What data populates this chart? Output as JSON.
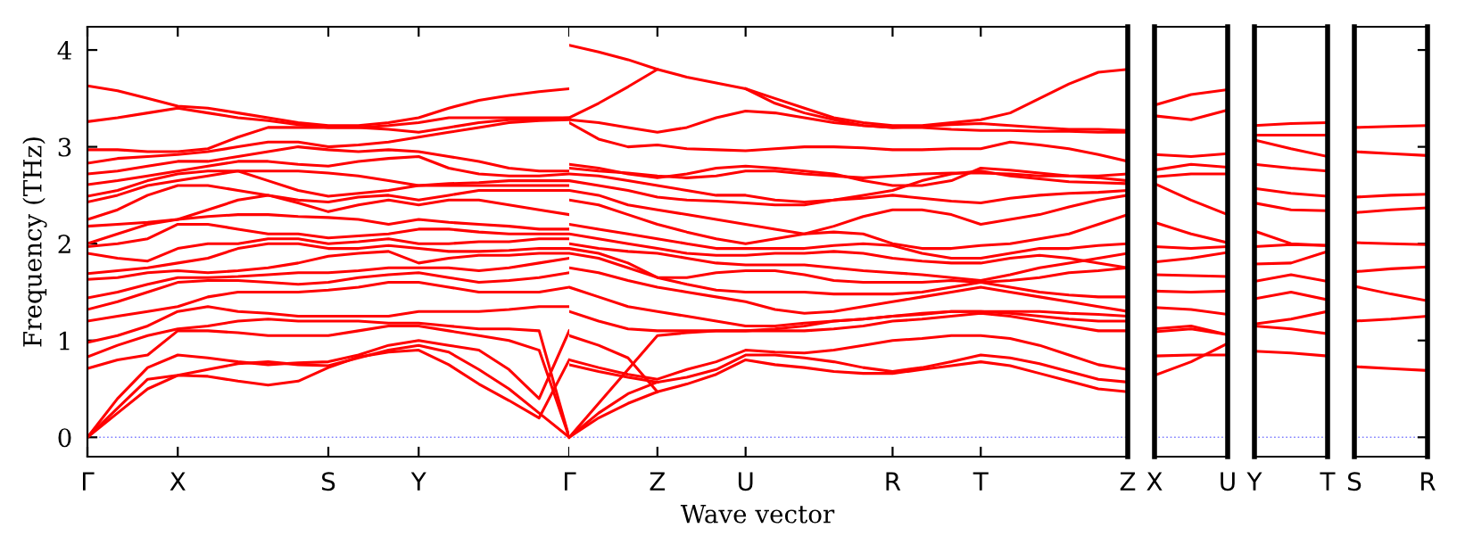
{
  "chart_data": [
    {
      "type": "line",
      "xlabel": "Wave vector",
      "ylabel": "Frequency (THz)",
      "ylim": [
        -0.2,
        4.24
      ],
      "yticks": [
        0,
        1,
        2,
        3,
        4
      ],
      "categories": [
        "Γ",
        null,
        null,
        "X",
        null,
        null,
        null,
        null,
        "S",
        null,
        null,
        "Y",
        null,
        null,
        null,
        null,
        "Γ"
      ],
      "ref_lines": [
        {
          "axis": "y",
          "value": 0,
          "color": "#8080ff",
          "line_style": "dotted"
        }
      ],
      "line_style": "solid",
      "marker": "none",
      "grid": false,
      "legend": false,
      "series": [
        {
          "color": "#ff0000",
          "values": [
            0,
            0.25,
            0.5,
            0.64,
            0.63,
            0.58,
            0.54,
            0.58,
            0.72,
            0.83,
            0.88,
            0.9,
            0.75,
            0.55,
            0.38,
            0.2,
            0.8
          ]
        },
        {
          "color": "#ff0000",
          "values": [
            0,
            0.3,
            0.6,
            0.64,
            0.7,
            0.76,
            0.78,
            0.75,
            0.74,
            0.82,
            0.9,
            0.95,
            0.88,
            0.7,
            0.5,
            0.25,
            0
          ]
        },
        {
          "color": "#ff0000",
          "values": [
            0,
            0.4,
            0.72,
            0.85,
            0.82,
            0.78,
            0.75,
            0.77,
            0.78,
            0.85,
            0.95,
            1.0,
            0.95,
            0.9,
            0.7,
            0.4,
            1.1
          ]
        },
        {
          "color": "#ff0000",
          "values": [
            0.71,
            0.8,
            0.85,
            1.1,
            1.1,
            1.08,
            1.05,
            1.05,
            1.05,
            1.1,
            1.15,
            1.15,
            1.1,
            1.05,
            1.0,
            0.9,
            0
          ]
        },
        {
          "color": "#ff0000",
          "values": [
            0.83,
            0.95,
            1.05,
            1.12,
            1.15,
            1.2,
            1.22,
            1.2,
            1.2,
            1.2,
            1.18,
            1.18,
            1.15,
            1.12,
            1.12,
            1.1,
            0
          ]
        },
        {
          "color": "#ff0000",
          "values": [
            0.98,
            1.05,
            1.15,
            1.3,
            1.35,
            1.3,
            1.28,
            1.25,
            1.25,
            1.25,
            1.25,
            1.3,
            1.3,
            1.3,
            1.32,
            1.35,
            1.35
          ]
        },
        {
          "color": "#ff0000",
          "values": [
            1.2,
            1.25,
            1.3,
            1.35,
            1.45,
            1.5,
            1.5,
            1.5,
            1.52,
            1.55,
            1.6,
            1.6,
            1.55,
            1.5,
            1.5,
            1.5,
            1.55
          ]
        },
        {
          "color": "#ff0000",
          "values": [
            1.32,
            1.4,
            1.5,
            1.6,
            1.62,
            1.62,
            1.6,
            1.58,
            1.6,
            1.65,
            1.68,
            1.7,
            1.65,
            1.6,
            1.62,
            1.65,
            1.7
          ]
        },
        {
          "color": "#ff0000",
          "values": [
            1.44,
            1.5,
            1.58,
            1.65,
            1.65,
            1.66,
            1.68,
            1.7,
            1.7,
            1.72,
            1.75,
            1.75,
            1.75,
            1.72,
            1.75,
            1.8,
            1.85
          ]
        },
        {
          "color": "#ff0000",
          "values": [
            1.63,
            1.65,
            1.7,
            1.72,
            1.7,
            1.72,
            1.75,
            1.8,
            1.87,
            1.9,
            1.92,
            1.8,
            1.85,
            1.88,
            1.88,
            1.9,
            1.9
          ]
        },
        {
          "color": "#ff0000",
          "values": [
            1.69,
            1.72,
            1.75,
            1.8,
            1.85,
            1.95,
            2.0,
            2.0,
            1.95,
            1.95,
            1.98,
            1.95,
            1.92,
            1.92,
            1.93,
            1.95,
            1.95
          ]
        },
        {
          "color": "#ff0000",
          "values": [
            1.9,
            1.85,
            1.82,
            1.95,
            2.0,
            2.0,
            2.05,
            2.05,
            2.0,
            2.02,
            2.05,
            2.0,
            2.0,
            2.02,
            2.02,
            2.05,
            2.05
          ]
        },
        {
          "color": "#ff0000",
          "values": [
            1.97,
            2.0,
            2.05,
            2.2,
            2.2,
            2.15,
            2.1,
            2.1,
            2.06,
            2.08,
            2.1,
            2.15,
            2.15,
            2.12,
            2.1,
            2.1,
            2.1
          ]
        },
        {
          "color": "#ff0000",
          "values": [
            2.0,
            2.1,
            2.2,
            2.25,
            2.28,
            2.3,
            2.3,
            2.28,
            2.27,
            2.25,
            2.2,
            2.25,
            2.22,
            2.2,
            2.18,
            2.15,
            2.15
          ]
        },
        {
          "color": "#ff0000",
          "values": [
            2.18,
            2.2,
            2.22,
            2.25,
            2.35,
            2.45,
            2.5,
            2.42,
            2.33,
            2.4,
            2.45,
            2.4,
            2.45,
            2.45,
            2.4,
            2.35,
            2.3
          ]
        },
        {
          "color": "#ff0000",
          "values": [
            2.25,
            2.35,
            2.5,
            2.6,
            2.6,
            2.55,
            2.5,
            2.45,
            2.43,
            2.48,
            2.5,
            2.45,
            2.5,
            2.55,
            2.55,
            2.55,
            2.55
          ]
        },
        {
          "color": "#ff0000",
          "values": [
            2.43,
            2.5,
            2.6,
            2.65,
            2.7,
            2.75,
            2.65,
            2.55,
            2.49,
            2.52,
            2.55,
            2.6,
            2.6,
            2.6,
            2.6,
            2.6,
            2.6
          ]
        },
        {
          "color": "#ff0000",
          "values": [
            2.49,
            2.55,
            2.65,
            2.72,
            2.75,
            2.75,
            2.75,
            2.75,
            2.73,
            2.7,
            2.65,
            2.6,
            2.62,
            2.63,
            2.65,
            2.65,
            2.65
          ]
        },
        {
          "color": "#ff0000",
          "values": [
            2.61,
            2.65,
            2.7,
            2.75,
            2.8,
            2.85,
            2.85,
            2.82,
            2.8,
            2.85,
            2.88,
            2.9,
            2.78,
            2.72,
            2.7,
            2.7,
            2.72
          ]
        },
        {
          "color": "#ff0000",
          "values": [
            2.72,
            2.75,
            2.8,
            2.85,
            2.85,
            2.9,
            2.95,
            3.0,
            2.97,
            2.95,
            2.97,
            2.95,
            2.9,
            2.85,
            2.78,
            2.75,
            2.75
          ]
        },
        {
          "color": "#ff0000",
          "values": [
            2.83,
            2.88,
            2.9,
            2.92,
            2.95,
            3.0,
            3.05,
            3.05,
            3.0,
            3.02,
            3.05,
            3.1,
            3.15,
            3.2,
            3.25,
            3.27,
            3.28
          ]
        },
        {
          "color": "#ff0000",
          "values": [
            2.97,
            2.97,
            2.95,
            2.95,
            2.98,
            3.1,
            3.2,
            3.2,
            3.2,
            3.2,
            3.18,
            3.15,
            3.2,
            3.25,
            3.28,
            3.28,
            3.3
          ]
        },
        {
          "color": "#ff0000",
          "values": [
            3.26,
            3.3,
            3.35,
            3.4,
            3.35,
            3.3,
            3.27,
            3.23,
            3.2,
            3.2,
            3.22,
            3.25,
            3.3,
            3.3,
            3.3,
            3.3,
            3.3
          ]
        },
        {
          "color": "#ff0000",
          "values": [
            3.63,
            3.58,
            3.5,
            3.42,
            3.4,
            3.35,
            3.3,
            3.25,
            3.22,
            3.22,
            3.25,
            3.3,
            3.4,
            3.48,
            3.53,
            3.57,
            3.6
          ]
        }
      ]
    },
    {
      "type": "line",
      "ylim": [
        -0.2,
        4.24
      ],
      "yticks": [
        0,
        1,
        2,
        3,
        4
      ],
      "tick_labels": "x",
      "categories": [
        null,
        null,
        null,
        "Z",
        null,
        null,
        "U",
        null,
        null,
        null,
        null,
        "R",
        null,
        null,
        "T",
        null,
        null,
        null,
        null,
        "Z"
      ],
      "ref_lines": [
        {
          "axis": "y",
          "value": 0,
          "color": "#8080ff",
          "line_style": "dotted"
        }
      ],
      "line_style": "solid",
      "marker": "none",
      "grid": false,
      "legend": false,
      "series": [
        {
          "color": "#ff0000",
          "values": [
            0,
            0.2,
            0.35,
            0.47,
            0.55,
            0.65,
            0.8,
            0.75,
            0.72,
            0.68,
            0.66,
            0.66,
            0.7,
            0.74,
            0.78,
            0.74,
            0.66,
            0.58,
            0.5,
            0.47
          ]
        },
        {
          "color": "#ff0000",
          "values": [
            0,
            0.25,
            0.45,
            0.57,
            0.62,
            0.7,
            0.85,
            0.85,
            0.82,
            0.78,
            0.72,
            0.68,
            0.72,
            0.78,
            0.85,
            0.82,
            0.76,
            0.68,
            0.6,
            0.57
          ]
        },
        {
          "color": "#ff0000",
          "values": [
            0,
            0.35,
            0.7,
            1.05,
            1.08,
            1.1,
            1.1,
            1.1,
            1.1,
            1.12,
            1.15,
            1.2,
            1.22,
            1.25,
            1.28,
            1.25,
            1.2,
            1.15,
            1.1,
            1.1
          ]
        },
        {
          "color": "#ff0000",
          "values": [
            0.75,
            0.68,
            0.62,
            0.57,
            null,
            null,
            null,
            null,
            null,
            null,
            null,
            null,
            null,
            null,
            null,
            null,
            null,
            null,
            null,
            null
          ]
        },
        {
          "color": "#ff0000",
          "values": [
            0.8,
            0.72,
            0.65,
            0.6,
            0.7,
            0.78,
            0.9,
            0.88,
            0.87,
            0.9,
            0.95,
            1.0,
            1.02,
            1.05,
            1.05,
            1.02,
            0.95,
            0.85,
            0.75,
            0.7
          ]
        },
        {
          "color": "#ff0000",
          "values": [
            1.05,
            0.95,
            0.82,
            0.47,
            null,
            null,
            null,
            null,
            null,
            null,
            null,
            null,
            null,
            null,
            null,
            null,
            null,
            null,
            null,
            null
          ]
        },
        {
          "color": "#ff0000",
          "values": [
            1.3,
            1.2,
            1.12,
            1.1,
            1.1,
            1.1,
            1.1,
            1.12,
            1.15,
            1.2,
            1.22,
            1.25,
            1.27,
            1.3,
            1.3,
            1.28,
            1.25,
            1.22,
            1.2,
            1.2
          ]
        },
        {
          "color": "#ff0000",
          "values": [
            1.55,
            1.45,
            1.35,
            1.3,
            1.25,
            1.2,
            1.15,
            1.15,
            1.18,
            1.2,
            1.22,
            1.25,
            1.28,
            1.3,
            1.3,
            1.3,
            1.3,
            1.28,
            1.27,
            1.25
          ]
        },
        {
          "color": "#ff0000",
          "values": [
            1.75,
            1.7,
            1.62,
            1.55,
            1.5,
            1.45,
            1.4,
            1.32,
            1.28,
            1.3,
            1.35,
            1.4,
            1.45,
            1.5,
            1.55,
            1.5,
            1.45,
            1.4,
            1.35,
            1.3
          ]
        },
        {
          "color": "#ff0000",
          "values": [
            1.9,
            1.85,
            1.75,
            1.65,
            1.58,
            1.52,
            1.5,
            1.5,
            1.5,
            1.48,
            1.48,
            1.48,
            1.5,
            1.55,
            1.6,
            1.55,
            1.5,
            1.47,
            1.45,
            1.45
          ]
        },
        {
          "color": "#ff0000",
          "values": [
            1.95,
            1.9,
            1.8,
            1.65,
            1.65,
            1.7,
            1.72,
            1.72,
            1.68,
            1.62,
            1.6,
            1.6,
            1.6,
            1.62,
            1.6,
            1.62,
            1.65,
            1.7,
            1.72,
            1.75
          ]
        },
        {
          "color": "#ff0000",
          "values": [
            2.0,
            1.95,
            1.92,
            1.9,
            1.85,
            1.8,
            1.78,
            1.78,
            1.78,
            1.75,
            1.72,
            1.7,
            1.68,
            1.65,
            1.62,
            1.68,
            1.75,
            1.8,
            1.85,
            1.9
          ]
        },
        {
          "color": "#ff0000",
          "values": [
            2.1,
            2.05,
            2.0,
            1.95,
            1.9,
            1.88,
            1.88,
            1.9,
            1.9,
            1.92,
            1.9,
            1.85,
            1.82,
            1.8,
            1.8,
            1.85,
            1.88,
            1.85,
            1.8,
            1.75
          ]
        },
        {
          "color": "#ff0000",
          "values": [
            2.2,
            2.15,
            2.1,
            2.05,
            2.0,
            1.95,
            1.95,
            1.95,
            1.95,
            1.98,
            2.0,
            1.98,
            1.9,
            1.85,
            1.85,
            1.9,
            1.95,
            1.95,
            1.98,
            2.0
          ]
        },
        {
          "color": "#ff0000",
          "values": [
            2.45,
            2.4,
            2.3,
            2.2,
            2.12,
            2.05,
            2.0,
            2.05,
            2.1,
            2.12,
            2.1,
            2.0,
            1.95,
            1.95,
            1.98,
            2.0,
            2.05,
            2.1,
            2.2,
            2.3
          ]
        },
        {
          "color": "#ff0000",
          "values": [
            2.55,
            2.5,
            2.4,
            2.35,
            2.3,
            2.25,
            2.2,
            2.15,
            2.1,
            2.18,
            2.28,
            2.35,
            2.35,
            2.3,
            2.2,
            2.25,
            2.3,
            2.38,
            2.45,
            2.5
          ]
        },
        {
          "color": "#ff0000",
          "values": [
            2.65,
            2.6,
            2.55,
            2.48,
            2.45,
            2.44,
            2.42,
            2.4,
            2.4,
            2.45,
            2.47,
            2.5,
            2.47,
            2.44,
            2.42,
            2.47,
            2.5,
            2.52,
            2.53,
            2.55
          ]
        },
        {
          "color": "#ff0000",
          "values": [
            2.72,
            2.7,
            2.65,
            2.6,
            2.55,
            2.5,
            2.5,
            2.45,
            2.43,
            2.45,
            2.5,
            2.55,
            2.65,
            2.72,
            2.75,
            2.7,
            2.67,
            2.64,
            2.63,
            2.62
          ]
        },
        {
          "color": "#ff0000",
          "values": [
            2.78,
            2.75,
            2.73,
            2.7,
            2.68,
            2.7,
            2.75,
            2.75,
            2.72,
            2.7,
            2.68,
            2.7,
            2.72,
            2.73,
            2.73,
            2.72,
            2.7,
            2.7,
            2.7,
            2.72
          ]
        },
        {
          "color": "#ff0000",
          "values": [
            2.82,
            2.78,
            2.72,
            2.68,
            2.72,
            2.78,
            2.8,
            2.78,
            2.75,
            2.72,
            2.65,
            2.6,
            2.6,
            2.65,
            2.78,
            2.76,
            2.73,
            2.7,
            2.68,
            2.65
          ]
        },
        {
          "color": "#ff0000",
          "values": [
            3.25,
            3.08,
            3.0,
            3.02,
            2.98,
            2.97,
            2.96,
            2.98,
            3.0,
            3.0,
            2.99,
            2.97,
            2.97,
            2.98,
            2.98,
            3.05,
            3.02,
            2.98,
            2.92,
            2.85
          ]
        },
        {
          "color": "#ff0000",
          "values": [
            3.28,
            3.25,
            3.2,
            3.15,
            3.2,
            3.3,
            3.37,
            3.35,
            3.3,
            3.25,
            3.22,
            3.2,
            3.21,
            3.23,
            3.24,
            3.22,
            3.2,
            3.18,
            3.18,
            3.17
          ]
        },
        {
          "color": "#ff0000",
          "values": [
            3.3,
            3.45,
            3.62,
            3.8,
            null,
            null,
            3.6,
            3.45,
            3.35,
            3.28,
            3.22,
            3.2,
            3.2,
            3.18,
            3.17,
            3.17,
            3.16,
            3.16,
            3.15,
            3.15
          ]
        },
        {
          "color": "#ff0000",
          "values": [
            4.05,
            3.98,
            3.9,
            3.8,
            3.72,
            3.66,
            3.6,
            3.5,
            3.4,
            3.3,
            3.25,
            3.22,
            3.22,
            3.25,
            3.28,
            3.35,
            3.5,
            3.65,
            3.77,
            3.8
          ]
        }
      ]
    },
    {
      "type": "line",
      "ylim": [
        -0.2,
        4.24
      ],
      "yticks": [
        0,
        1,
        2,
        3,
        4
      ],
      "tick_labels": "x",
      "categories": [
        "X",
        null,
        "U"
      ],
      "ref_lines": [
        {
          "axis": "y",
          "value": 0,
          "color": "#8080ff",
          "line_style": "dotted"
        }
      ],
      "line_style": "solid",
      "marker": "none",
      "grid": false,
      "legend": false,
      "series": [
        {
          "color": "#ff0000",
          "values": [
            0.64,
            0.78,
            0.97
          ]
        },
        {
          "color": "#ff0000",
          "values": [
            0.84,
            0.85,
            0.85
          ]
        },
        {
          "color": "#ff0000",
          "values": [
            1.09,
            1.12,
            1.06
          ]
        },
        {
          "color": "#ff0000",
          "values": [
            1.12,
            1.15,
            1.06
          ]
        },
        {
          "color": "#ff0000",
          "values": [
            1.34,
            1.32,
            1.27
          ]
        },
        {
          "color": "#ff0000",
          "values": [
            1.51,
            1.5,
            1.51
          ]
        },
        {
          "color": "#ff0000",
          "values": [
            1.68,
            1.67,
            1.66
          ]
        },
        {
          "color": "#ff0000",
          "values": [
            1.81,
            1.85,
            1.91
          ]
        },
        {
          "color": "#ff0000",
          "values": [
            1.97,
            1.95,
            1.97
          ]
        },
        {
          "color": "#ff0000",
          "values": [
            2.22,
            2.1,
            2.01
          ]
        },
        {
          "color": "#ff0000",
          "values": [
            2.62,
            2.45,
            2.3
          ]
        },
        {
          "color": "#ff0000",
          "values": [
            2.69,
            2.72,
            2.72
          ]
        },
        {
          "color": "#ff0000",
          "values": [
            2.76,
            2.82,
            2.79
          ]
        },
        {
          "color": "#ff0000",
          "values": [
            2.92,
            2.9,
            2.93
          ]
        },
        {
          "color": "#ff0000",
          "values": [
            3.32,
            3.28,
            3.38
          ]
        },
        {
          "color": "#ff0000",
          "values": [
            3.43,
            3.54,
            3.59
          ]
        }
      ]
    },
    {
      "type": "line",
      "ylim": [
        -0.2,
        4.24
      ],
      "yticks": [
        0,
        1,
        2,
        3,
        4
      ],
      "tick_labels": "x",
      "categories": [
        "Y",
        null,
        "T"
      ],
      "ref_lines": [
        {
          "axis": "y",
          "value": 0,
          "color": "#8080ff",
          "line_style": "dotted"
        }
      ],
      "line_style": "solid",
      "marker": "none",
      "grid": false,
      "legend": false,
      "series": [
        {
          "color": "#ff0000",
          "values": [
            0.89,
            0.87,
            0.84
          ]
        },
        {
          "color": "#ff0000",
          "values": [
            1.15,
            1.12,
            1.07
          ]
        },
        {
          "color": "#ff0000",
          "values": [
            1.17,
            1.22,
            1.3
          ]
        },
        {
          "color": "#ff0000",
          "values": [
            1.43,
            1.5,
            1.42
          ]
        },
        {
          "color": "#ff0000",
          "values": [
            1.61,
            1.68,
            1.61
          ]
        },
        {
          "color": "#ff0000",
          "values": [
            1.79,
            1.8,
            1.92
          ]
        },
        {
          "color": "#ff0000",
          "values": [
            1.97,
            1.99,
            1.98
          ]
        },
        {
          "color": "#ff0000",
          "values": [
            2.13,
            2.0,
            1.98
          ]
        },
        {
          "color": "#ff0000",
          "values": [
            2.42,
            2.35,
            2.34
          ]
        },
        {
          "color": "#ff0000",
          "values": [
            2.57,
            2.52,
            2.49
          ]
        },
        {
          "color": "#ff0000",
          "values": [
            2.82,
            2.78,
            2.75
          ]
        },
        {
          "color": "#ff0000",
          "values": [
            3.07,
            2.98,
            2.9
          ]
        },
        {
          "color": "#ff0000",
          "values": [
            3.12,
            3.12,
            3.12
          ]
        },
        {
          "color": "#ff0000",
          "values": [
            3.22,
            3.24,
            3.25
          ]
        }
      ]
    },
    {
      "type": "line",
      "ylim": [
        -0.2,
        4.24
      ],
      "yticks": [
        0,
        1,
        2,
        3,
        4
      ],
      "tick_labels": "x",
      "categories": [
        "S",
        null,
        "R"
      ],
      "ref_lines": [
        {
          "axis": "y",
          "value": 0,
          "color": "#8080ff",
          "line_style": "dotted"
        }
      ],
      "line_style": "solid",
      "marker": "none",
      "grid": false,
      "legend": false,
      "series": [
        {
          "color": "#ff0000",
          "values": [
            0.73,
            0.71,
            0.69
          ]
        },
        {
          "color": "#ff0000",
          "values": [
            1.2,
            1.22,
            1.25
          ]
        },
        {
          "color": "#ff0000",
          "values": [
            1.56,
            1.48,
            1.41
          ]
        },
        {
          "color": "#ff0000",
          "values": [
            1.71,
            1.74,
            1.76
          ]
        },
        {
          "color": "#ff0000",
          "values": [
            2.01,
            2.0,
            1.99
          ]
        },
        {
          "color": "#ff0000",
          "values": [
            2.32,
            2.35,
            2.37
          ]
        },
        {
          "color": "#ff0000",
          "values": [
            2.48,
            2.5,
            2.51
          ]
        },
        {
          "color": "#ff0000",
          "values": [
            2.95,
            2.93,
            2.91
          ]
        },
        {
          "color": "#ff0000",
          "values": [
            3.2,
            3.21,
            3.22
          ]
        }
      ]
    }
  ]
}
